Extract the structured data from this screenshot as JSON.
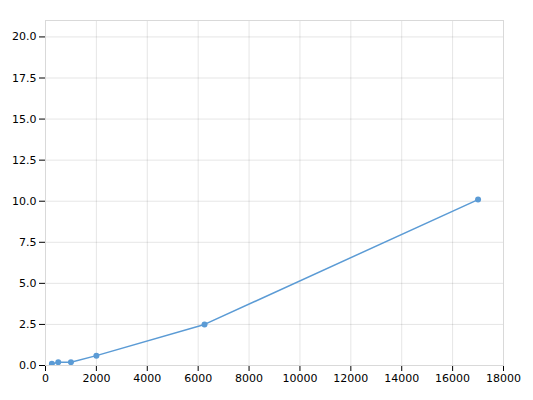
{
  "chart_data": {
    "type": "line",
    "x": [
      250,
      500,
      1000,
      2000,
      6250,
      17000
    ],
    "values": [
      0.1,
      0.2,
      0.2,
      0.6,
      2.5,
      10.1
    ],
    "color": "#5b9bd5",
    "marker": "circle",
    "xlim": [
      0,
      18000
    ],
    "ylim": [
      0,
      21
    ],
    "xticks": [
      0,
      2000,
      4000,
      6000,
      8000,
      10000,
      12000,
      14000,
      16000,
      18000
    ],
    "yticks": [
      {
        "value": 0.0,
        "label": "0.0"
      },
      2.5,
      {
        "value": 5.0,
        "label": "5.0"
      },
      7.5,
      {
        "value": 10.0,
        "label": "10.0"
      },
      12.5,
      {
        "value": 15.0,
        "label": "15.0"
      },
      17.5,
      {
        "value": 20.0,
        "label": "20.0"
      }
    ],
    "grid": true
  }
}
